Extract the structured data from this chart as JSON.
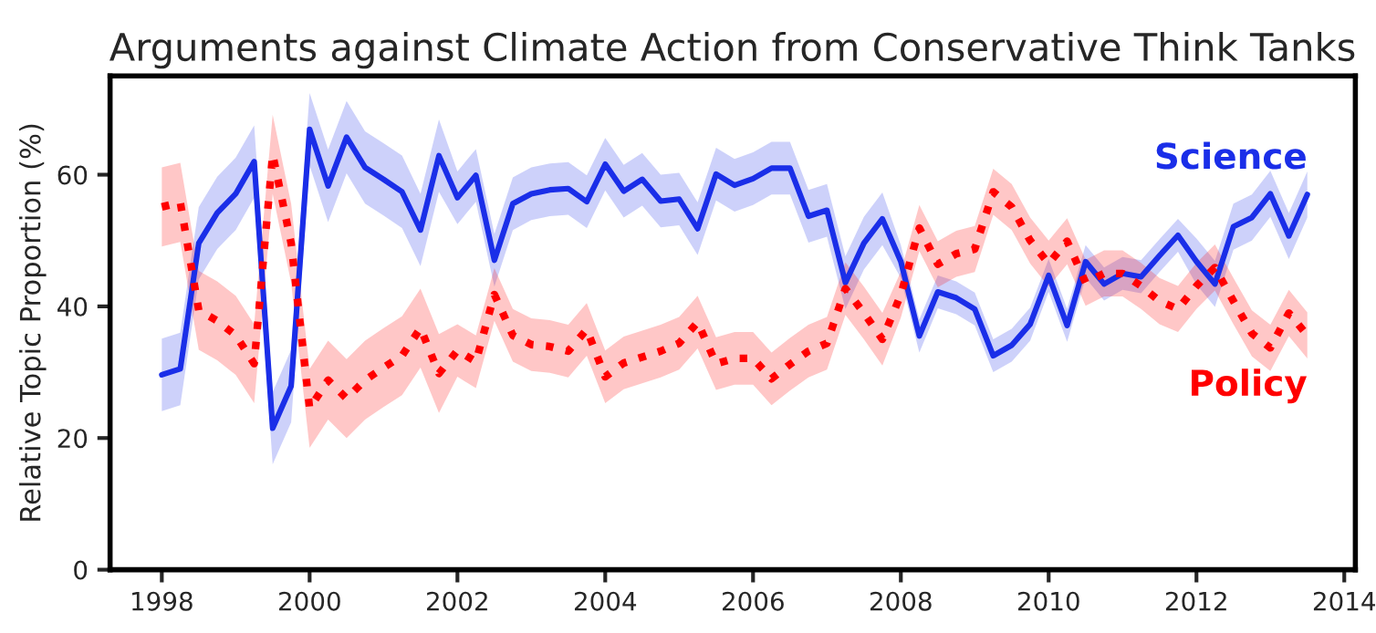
{
  "chart_data": {
    "type": "line",
    "title": "Arguments against Climate Action from Conservative Think Tanks",
    "ylabel": "Relative Topic Proportion (%)",
    "x": [
      1998.0,
      1998.25,
      1998.5,
      1998.75,
      1999.0,
      1999.25,
      1999.5,
      1999.75,
      2000.0,
      2000.25,
      2000.5,
      2000.75,
      2001.0,
      2001.25,
      2001.5,
      2001.75,
      2002.0,
      2002.25,
      2002.5,
      2002.75,
      2003.0,
      2003.25,
      2003.5,
      2003.75,
      2004.0,
      2004.25,
      2004.5,
      2004.75,
      2005.0,
      2005.25,
      2005.5,
      2005.75,
      2006.0,
      2006.25,
      2006.5,
      2006.75,
      2007.0,
      2007.25,
      2007.5,
      2007.75,
      2008.0,
      2008.25,
      2008.5,
      2008.75,
      2009.0,
      2009.25,
      2009.5,
      2009.75,
      2010.0,
      2010.25,
      2010.5,
      2010.75,
      2011.0,
      2011.25,
      2011.5,
      2011.75,
      2012.0,
      2012.25,
      2012.5,
      2012.75,
      2013.0,
      2013.25,
      2013.5
    ],
    "series": [
      {
        "name": "Science",
        "color": "#1a2ee8",
        "line_style": "solid",
        "values": [
          29.6,
          30.5,
          49.6,
          54.2,
          57.1,
          62.0,
          21.5,
          27.9,
          66.9,
          58.3,
          65.7,
          61.1,
          59.3,
          57.4,
          51.6,
          62.9,
          56.5,
          59.9,
          47.0,
          55.6,
          57.1,
          57.7,
          57.9,
          55.9,
          61.6,
          57.5,
          59.3,
          56.0,
          56.3,
          51.8,
          60.1,
          58.4,
          59.4,
          61.0,
          61.0,
          53.7,
          54.6,
          43.6,
          49.6,
          53.3,
          46.8,
          35.5,
          42.2,
          41.3,
          39.6,
          32.5,
          34.1,
          37.3,
          44.7,
          37.1,
          46.8,
          43.4,
          45.0,
          44.5,
          47.7,
          50.8,
          46.8,
          43.4,
          52.1,
          53.5,
          57.1,
          50.7,
          57.0
        ],
        "lower": [
          24.1,
          25.0,
          44.1,
          48.7,
          51.6,
          56.5,
          16.0,
          22.4,
          61.4,
          52.8,
          60.2,
          55.6,
          53.8,
          51.9,
          46.1,
          57.4,
          52.5,
          55.9,
          43.0,
          51.6,
          53.1,
          53.7,
          53.9,
          51.9,
          57.6,
          53.5,
          55.3,
          52.0,
          52.3,
          47.8,
          56.1,
          54.4,
          55.4,
          57.0,
          57.0,
          49.7,
          50.6,
          39.6,
          45.6,
          49.3,
          44.3,
          33.0,
          39.7,
          38.8,
          37.1,
          30.0,
          31.6,
          34.8,
          42.2,
          34.6,
          44.3,
          40.9,
          42.5,
          42.0,
          45.2,
          48.3,
          43.3,
          39.9,
          48.6,
          50.0,
          53.6,
          47.2,
          53.5
        ],
        "upper": [
          35.1,
          36.0,
          55.1,
          59.7,
          62.6,
          67.5,
          27.0,
          33.4,
          72.4,
          63.8,
          71.2,
          66.6,
          64.8,
          62.9,
          57.1,
          68.4,
          60.5,
          63.9,
          51.0,
          59.6,
          61.1,
          61.7,
          61.9,
          59.9,
          65.6,
          61.5,
          63.3,
          60.0,
          60.3,
          55.8,
          64.1,
          62.4,
          63.4,
          65.0,
          65.0,
          57.7,
          58.6,
          47.6,
          53.6,
          57.3,
          49.3,
          38.0,
          44.7,
          43.8,
          42.1,
          35.0,
          36.6,
          39.8,
          47.2,
          39.6,
          49.3,
          45.9,
          47.5,
          47.0,
          50.2,
          53.3,
          50.3,
          46.9,
          55.6,
          57.0,
          60.6,
          54.2,
          60.5
        ]
      },
      {
        "name": "Policy",
        "color": "#ff0000",
        "line_style": "dotted",
        "values": [
          55.1,
          55.8,
          39.4,
          37.8,
          35.6,
          31.3,
          63.1,
          49.6,
          24.5,
          28.8,
          26.0,
          28.8,
          30.7,
          32.5,
          36.7,
          29.8,
          33.3,
          31.6,
          41.8,
          35.6,
          34.2,
          33.9,
          33.2,
          36.5,
          29.3,
          31.4,
          32.3,
          33.2,
          34.4,
          37.6,
          31.3,
          32.1,
          32.1,
          29.0,
          31.2,
          33.2,
          34.4,
          42.7,
          39.0,
          35.0,
          41.8,
          51.9,
          46.4,
          48.0,
          48.7,
          57.4,
          55.1,
          50.0,
          46.5,
          49.9,
          43.6,
          45.0,
          45.0,
          43.1,
          40.8,
          39.6,
          43.1,
          45.9,
          40.8,
          35.9,
          33.7,
          39.0,
          35.6
        ],
        "lower": [
          49.1,
          49.8,
          33.4,
          31.8,
          29.6,
          25.3,
          57.1,
          43.6,
          18.5,
          22.8,
          20.0,
          22.8,
          24.7,
          26.5,
          30.7,
          23.8,
          29.3,
          27.6,
          37.8,
          31.6,
          30.2,
          29.9,
          29.2,
          32.5,
          25.3,
          27.4,
          28.3,
          29.2,
          30.4,
          33.6,
          27.3,
          28.1,
          28.1,
          25.0,
          27.2,
          29.2,
          30.4,
          38.7,
          35.0,
          31.0,
          38.3,
          48.4,
          42.9,
          44.5,
          45.2,
          53.9,
          51.6,
          46.5,
          43.0,
          46.4,
          40.1,
          41.5,
          41.5,
          39.6,
          37.3,
          36.1,
          39.6,
          42.4,
          37.3,
          32.4,
          30.2,
          35.5,
          32.1
        ],
        "upper": [
          61.1,
          61.8,
          45.4,
          43.8,
          41.6,
          37.3,
          69.1,
          55.6,
          30.5,
          34.8,
          32.0,
          34.8,
          36.7,
          38.5,
          42.7,
          35.8,
          37.3,
          35.6,
          45.8,
          39.6,
          38.2,
          37.9,
          37.2,
          40.5,
          33.3,
          35.4,
          36.3,
          37.2,
          38.4,
          41.6,
          35.3,
          36.1,
          36.1,
          33.0,
          35.2,
          37.2,
          38.4,
          46.7,
          43.0,
          39.0,
          45.3,
          55.4,
          49.9,
          51.5,
          52.2,
          60.9,
          58.6,
          53.5,
          50.0,
          53.4,
          47.1,
          48.5,
          48.5,
          46.6,
          44.3,
          43.1,
          46.6,
          49.4,
          44.3,
          39.4,
          37.2,
          42.5,
          39.1
        ]
      }
    ],
    "xlim": [
      1997.3,
      2014.15
    ],
    "xticks": [
      1998,
      2000,
      2002,
      2004,
      2006,
      2008,
      2010,
      2012,
      2014
    ],
    "ylim": [
      0,
      75
    ],
    "yticks": [
      0,
      20,
      40,
      60
    ],
    "grid": false,
    "legend": false,
    "marker": "none"
  }
}
